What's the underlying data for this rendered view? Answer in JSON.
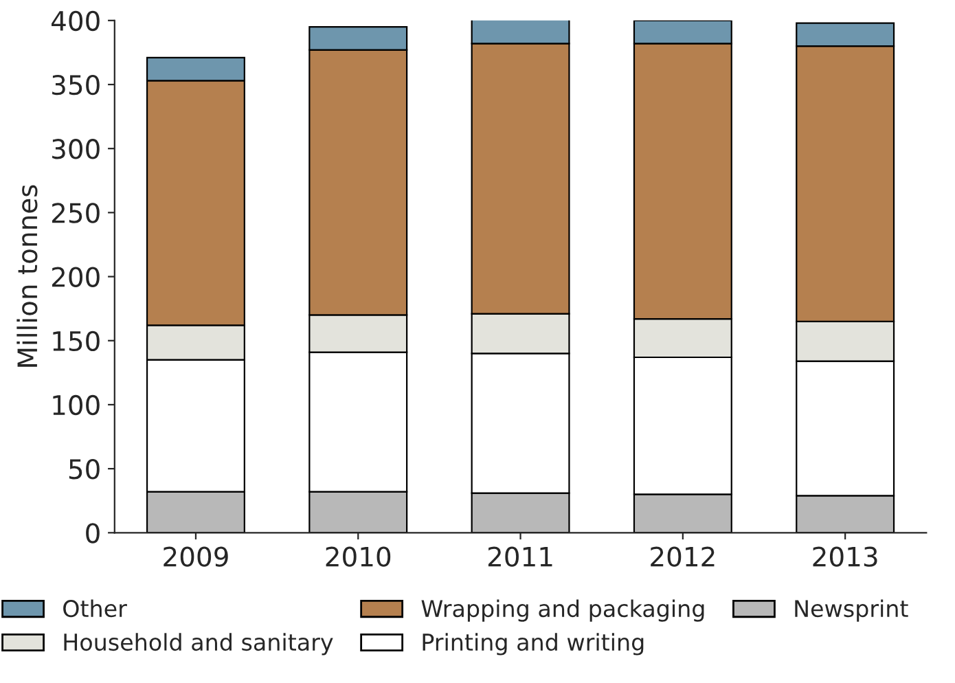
{
  "chart_data": {
    "type": "bar",
    "stacked": true,
    "ylabel": "Million tonnes",
    "categories": [
      "2009",
      "2010",
      "2011",
      "2012",
      "2013"
    ],
    "series": [
      {
        "name": "Newsprint",
        "color": "#b8b8b8",
        "values": [
          32,
          32,
          31,
          30,
          29
        ]
      },
      {
        "name": "Printing and writing",
        "color": "#ffffff",
        "values": [
          103,
          109,
          109,
          107,
          105
        ]
      },
      {
        "name": "Household and sanitary",
        "color": "#e3e3dc",
        "values": [
          27,
          29,
          31,
          30,
          31
        ]
      },
      {
        "name": "Wrapping and packaging",
        "color": "#b5804f",
        "values": [
          191,
          207,
          211,
          215,
          215
        ]
      },
      {
        "name": "Other",
        "color": "#6e96ad",
        "values": [
          18,
          18,
          19,
          18,
          18
        ]
      }
    ],
    "ylim": [
      0,
      400
    ],
    "yticks": [
      0,
      50,
      100,
      150,
      200,
      250,
      300,
      350,
      400
    ],
    "legend": "bottom"
  }
}
